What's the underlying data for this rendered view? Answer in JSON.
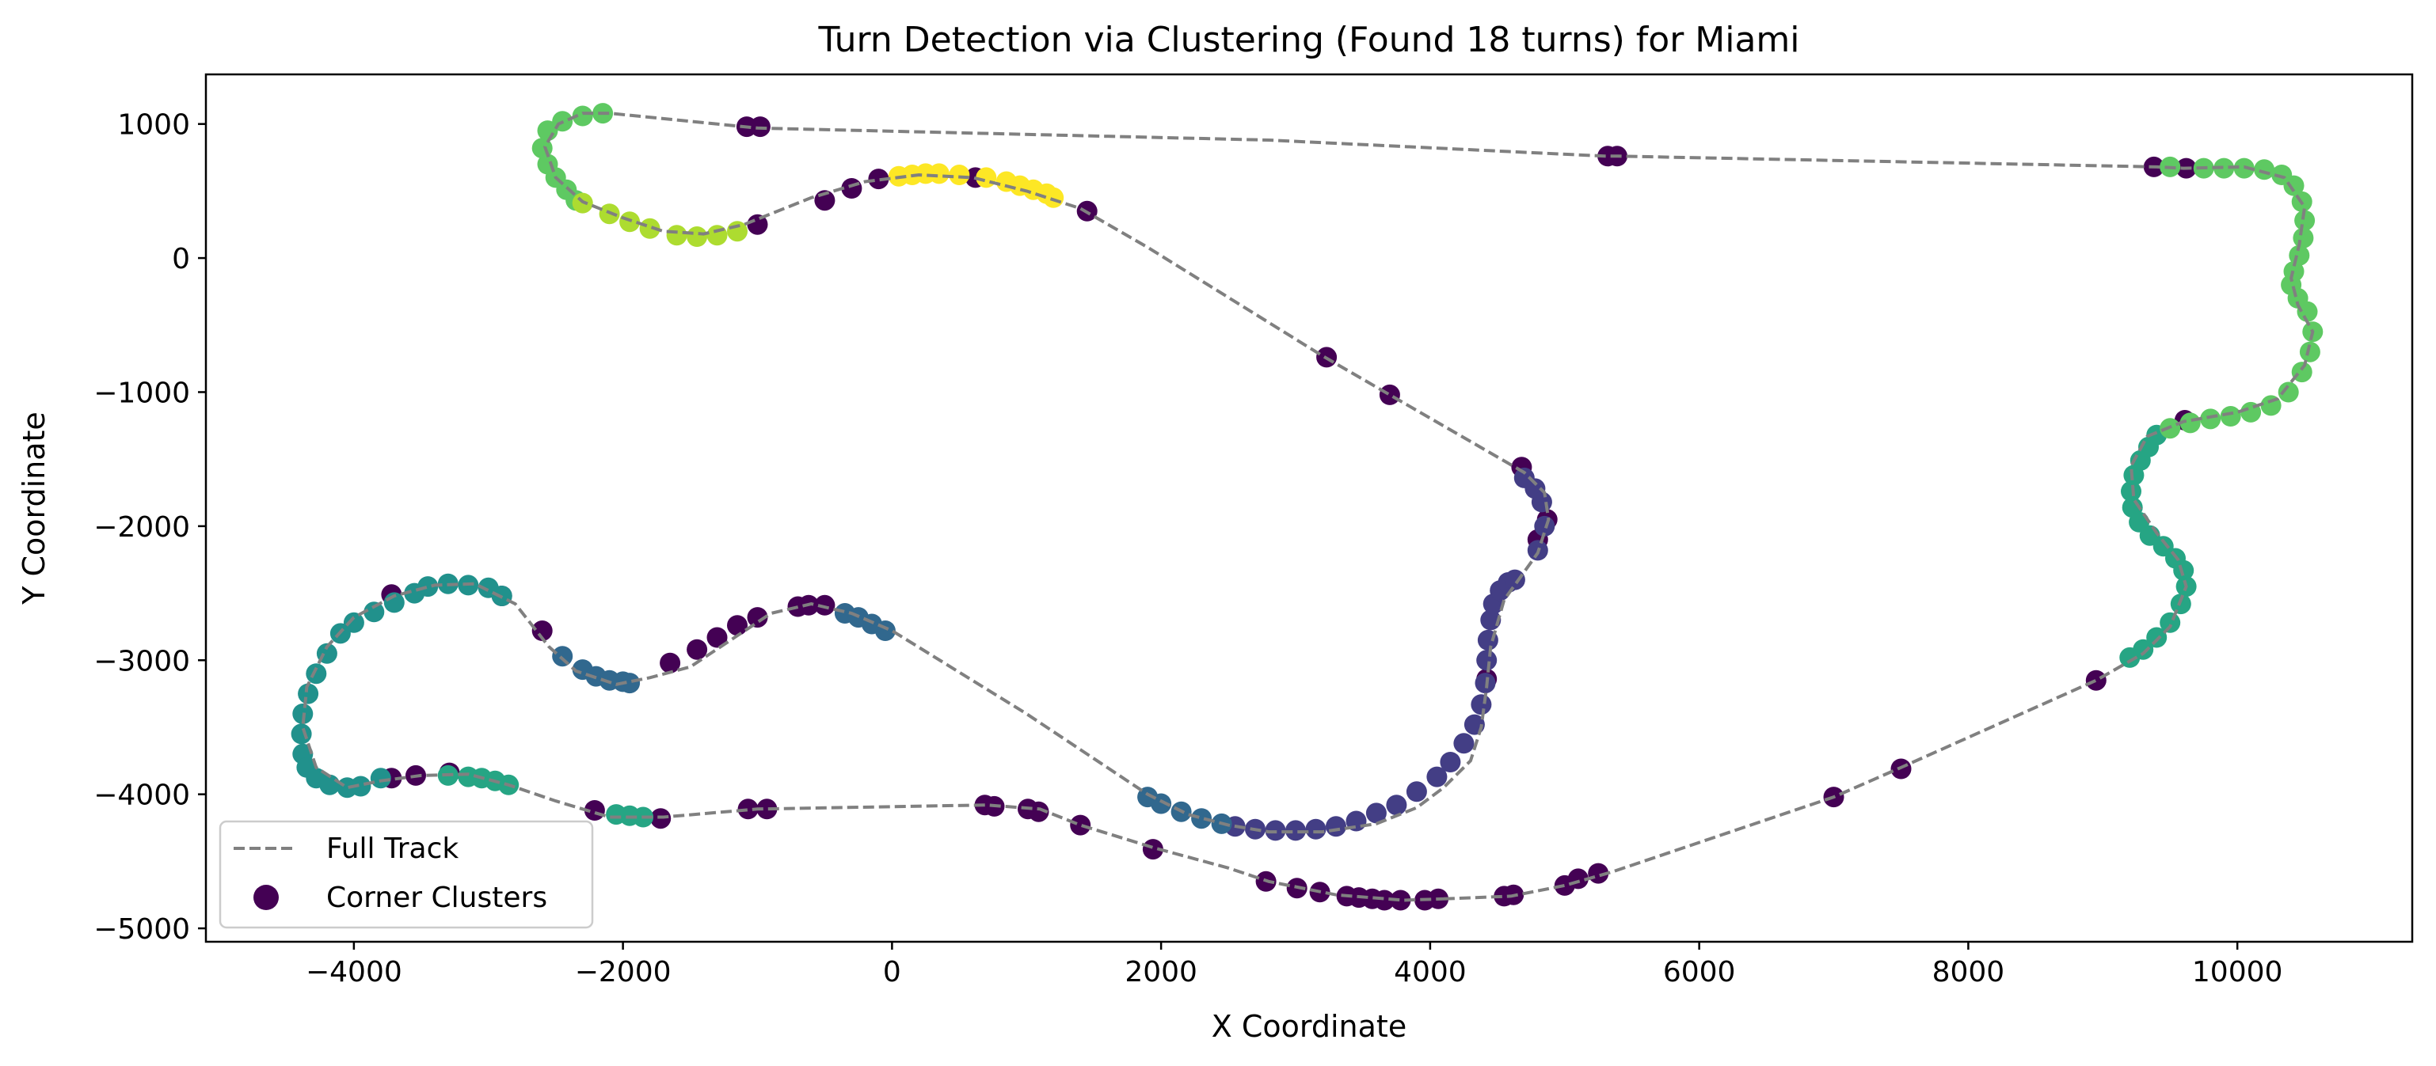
{
  "chart_data": {
    "type": "scatter",
    "title": "Turn Detection via Clustering (Found 18 turns) for Miami",
    "xlabel": "X Coordinate",
    "ylabel": "Y Coordinate",
    "xlim": [
      -5100,
      11300
    ],
    "ylim": [
      -5100,
      1370
    ],
    "xticks": [
      -4000,
      -2000,
      0,
      2000,
      4000,
      6000,
      8000,
      10000
    ],
    "yticks": [
      1000,
      0,
      -1000,
      -2000,
      -3000,
      -4000,
      -5000
    ],
    "xtick_labels": [
      "−4000",
      "−2000",
      "0",
      "2000",
      "4000",
      "6000",
      "8000",
      "10000"
    ],
    "ytick_labels": [
      "1000",
      "0",
      "−1000",
      "−2000",
      "−3000",
      "−4000",
      "−5000"
    ],
    "grid": false,
    "legend": {
      "position": "lower-left",
      "entries": [
        {
          "label": "Full Track",
          "type": "line",
          "color": "#808080"
        },
        {
          "label": "Corner Clusters",
          "type": "marker",
          "color": "#440154"
        }
      ]
    },
    "colors": {
      "noise": "#440154",
      "c_dark": "#433e85",
      "c_blue": "#31688e",
      "c_teal": "#21918c",
      "c_teal2": "#26a584",
      "c_green": "#5ec962",
      "c_lime": "#addc30",
      "c_yellow": "#fde725",
      "track": "#808080"
    },
    "track": [
      [
        4100,
        -4780
      ],
      [
        4600,
        -4760
      ],
      [
        5000,
        -4680
      ],
      [
        5350,
        -4580
      ],
      [
        7000,
        -4020
      ],
      [
        7500,
        -3800
      ],
      [
        8950,
        -3150
      ],
      [
        9300,
        -2950
      ],
      [
        9500,
        -2750
      ],
      [
        9620,
        -2450
      ],
      [
        9560,
        -2250
      ],
      [
        9400,
        -2050
      ],
      [
        9230,
        -1800
      ],
      [
        9210,
        -1550
      ],
      [
        9330,
        -1330
      ],
      [
        9600,
        -1220
      ],
      [
        10000,
        -1150
      ],
      [
        10300,
        -1050
      ],
      [
        10500,
        -800
      ],
      [
        10560,
        -550
      ],
      [
        10450,
        -350
      ],
      [
        10400,
        -150
      ],
      [
        10460,
        100
      ],
      [
        10500,
        380
      ],
      [
        10350,
        600
      ],
      [
        10050,
        680
      ],
      [
        9600,
        670
      ],
      [
        9400,
        680
      ],
      [
        5400,
        760
      ],
      [
        5300,
        760
      ],
      [
        2800,
        880
      ],
      [
        -1000,
        970
      ],
      [
        -2100,
        1080
      ],
      [
        -2300,
        1080
      ],
      [
        -2480,
        1000
      ],
      [
        -2580,
        830
      ],
      [
        -2500,
        600
      ],
      [
        -2300,
        420
      ],
      [
        -2000,
        300
      ],
      [
        -1700,
        200
      ],
      [
        -1400,
        180
      ],
      [
        -1100,
        250
      ],
      [
        -600,
        450
      ],
      [
        -200,
        570
      ],
      [
        200,
        620
      ],
      [
        600,
        600
      ],
      [
        1000,
        500
      ],
      [
        1400,
        370
      ],
      [
        1900,
        80
      ],
      [
        3200,
        -730
      ],
      [
        3700,
        -1020
      ],
      [
        4700,
        -1600
      ],
      [
        4850,
        -1750
      ],
      [
        4880,
        -1950
      ],
      [
        4800,
        -2200
      ],
      [
        4550,
        -2550
      ],
      [
        4450,
        -2900
      ],
      [
        4420,
        -3200
      ],
      [
        4380,
        -3500
      ],
      [
        4300,
        -3750
      ],
      [
        4100,
        -3950
      ],
      [
        3900,
        -4100
      ],
      [
        3600,
        -4220
      ],
      [
        3200,
        -4280
      ],
      [
        2800,
        -4280
      ],
      [
        2500,
        -4230
      ],
      [
        2200,
        -4150
      ],
      [
        1900,
        -4000
      ],
      [
        1000,
        -3400
      ],
      [
        0,
        -2780
      ],
      [
        -300,
        -2650
      ],
      [
        -600,
        -2580
      ],
      [
        -900,
        -2650
      ],
      [
        -1200,
        -2850
      ],
      [
        -1500,
        -3050
      ],
      [
        -1800,
        -3130
      ],
      [
        -2050,
        -3180
      ],
      [
        -2350,
        -3080
      ],
      [
        -2550,
        -2900
      ],
      [
        -2800,
        -2580
      ],
      [
        -3100,
        -2430
      ],
      [
        -3400,
        -2440
      ],
      [
        -3700,
        -2520
      ],
      [
        -4000,
        -2680
      ],
      [
        -4200,
        -2900
      ],
      [
        -4350,
        -3200
      ],
      [
        -4380,
        -3500
      ],
      [
        -4280,
        -3800
      ],
      [
        -4050,
        -3950
      ],
      [
        -3800,
        -3900
      ],
      [
        -3500,
        -3860
      ],
      [
        -3150,
        -3850
      ],
      [
        -2850,
        -3930
      ],
      [
        -2500,
        -4050
      ],
      [
        -2100,
        -4170
      ],
      [
        -1700,
        -4170
      ],
      [
        -1000,
        -4110
      ],
      [
        700,
        -4080
      ],
      [
        1100,
        -4110
      ],
      [
        1400,
        -4230
      ],
      [
        1950,
        -4400
      ],
      [
        2500,
        -4550
      ],
      [
        2800,
        -4650
      ],
      [
        3300,
        -4750
      ],
      [
        3800,
        -4790
      ],
      [
        4100,
        -4780
      ]
    ],
    "points": [
      {
        "color": "noise",
        "x": [
          4550,
          4620,
          5000,
          5100,
          5250,
          7000,
          7500,
          8950,
          9610,
          9380,
          9620,
          5320,
          5390,
          -1080,
          -980,
          -1000,
          -500,
          -300,
          -100,
          620,
          1450,
          3230,
          3700,
          4420,
          4680,
          4800,
          4870,
          -3720,
          -2900,
          -2600,
          -1650,
          -1450,
          -1300,
          -1150,
          -1000,
          -700,
          -620,
          -500,
          -3720,
          -3540,
          -3290,
          -2210,
          -1720,
          -1070,
          -930,
          690,
          760,
          1010,
          1090,
          1400,
          1940,
          2780,
          3010,
          3180,
          3380,
          3470,
          3570,
          3660,
          3780,
          3960,
          4060
        ],
        "y": [
          -4760,
          -4750,
          -4680,
          -4630,
          -4590,
          -4020,
          -3810,
          -3150,
          -1210,
          680,
          670,
          760,
          760,
          980,
          980,
          250,
          430,
          520,
          590,
          600,
          350,
          -740,
          -1020,
          -3140,
          -1560,
          -2100,
          -1950,
          -2510,
          -2520,
          -2780,
          -3020,
          -2920,
          -2830,
          -2740,
          -2680,
          -2600,
          -2590,
          -2590,
          -3880,
          -3860,
          -3840,
          -4120,
          -4180,
          -4110,
          -4110,
          -4080,
          -4090,
          -4110,
          -4130,
          -4230,
          -4410,
          -4650,
          -4700,
          -4730,
          -4760,
          -4770,
          -4780,
          -4790,
          -4790,
          -4790,
          -4780
        ]
      },
      {
        "color": "c_dark",
        "x": [
          2550,
          2700,
          2850,
          3000,
          3150,
          3300,
          3450,
          3600,
          3750,
          3900,
          4050,
          4150,
          4250,
          4330,
          4380,
          4410,
          4420,
          4430,
          4450,
          4470,
          4520,
          4580,
          4630,
          4700,
          4780,
          4830,
          4850,
          4800
        ],
        "y": [
          -4240,
          -4260,
          -4270,
          -4270,
          -4260,
          -4240,
          -4200,
          -4140,
          -4080,
          -3980,
          -3870,
          -3760,
          -3620,
          -3480,
          -3330,
          -3170,
          -3000,
          -2850,
          -2700,
          -2580,
          -2480,
          -2420,
          -2400,
          -1640,
          -1720,
          -1820,
          -2000,
          -2180
        ]
      },
      {
        "color": "c_blue",
        "x": [
          1900,
          2000,
          2150,
          2300,
          2450,
          -350,
          -250,
          -150,
          -50,
          -2450,
          -2300,
          -2200,
          -2100,
          -2000,
          -1950
        ],
        "y": [
          -4020,
          -4070,
          -4130,
          -4180,
          -4220,
          -2650,
          -2680,
          -2730,
          -2780,
          -2970,
          -3070,
          -3120,
          -3150,
          -3160,
          -3170
        ]
      },
      {
        "color": "c_teal",
        "x": [
          -2900,
          -3000,
          -3150,
          -3300,
          -3450,
          -3550,
          -3700,
          -3850,
          -4000,
          -4100,
          -4200,
          -4280,
          -4340,
          -4380,
          -4390,
          -4380,
          -4350,
          -4280,
          -4180,
          -4050,
          -3950,
          -3800
        ],
        "y": [
          -2520,
          -2460,
          -2440,
          -2430,
          -2450,
          -2500,
          -2570,
          -2640,
          -2720,
          -2800,
          -2950,
          -3100,
          -3250,
          -3400,
          -3550,
          -3700,
          -3800,
          -3880,
          -3930,
          -3950,
          -3940,
          -3880
        ]
      },
      {
        "color": "c_teal2",
        "x": [
          -3300,
          -3150,
          -3050,
          -2950,
          -2850,
          -2050,
          -1950,
          -1850,
          9200,
          9300,
          9400,
          9500,
          9580,
          9620,
          9600,
          9540,
          9450,
          9350,
          9270,
          9220,
          9210,
          9230,
          9280,
          9340,
          9400
        ],
        "y": [
          -3860,
          -3870,
          -3880,
          -3900,
          -3930,
          -4150,
          -4160,
          -4170,
          -2980,
          -2920,
          -2830,
          -2720,
          -2580,
          -2450,
          -2330,
          -2240,
          -2150,
          -2070,
          -1970,
          -1860,
          -1740,
          -1620,
          -1510,
          -1410,
          -1320
        ]
      },
      {
        "color": "c_green",
        "x": [
          9500,
          9650,
          9800,
          9950,
          10100,
          10250,
          10380,
          10480,
          10540,
          10560,
          10520,
          10450,
          10400,
          10420,
          10460,
          10490,
          10500,
          10480,
          10420,
          10330,
          10200,
          10050,
          9900,
          9750,
          9500,
          -2150,
          -2300,
          -2450,
          -2560,
          -2600,
          -2560,
          -2500,
          -2420,
          -2350
        ],
        "y": [
          -1270,
          -1230,
          -1200,
          -1180,
          -1150,
          -1100,
          -1000,
          -850,
          -700,
          -550,
          -400,
          -300,
          -200,
          -100,
          20,
          150,
          280,
          420,
          540,
          620,
          660,
          670,
          670,
          670,
          680,
          1080,
          1060,
          1020,
          950,
          820,
          700,
          600,
          510,
          430
        ]
      },
      {
        "color": "c_lime",
        "x": [
          -2300,
          -2100,
          -1950,
          -1800,
          -1600,
          -1450,
          -1300,
          -1150
        ],
        "y": [
          410,
          330,
          270,
          220,
          170,
          160,
          170,
          200
        ]
      },
      {
        "color": "c_yellow",
        "x": [
          50,
          150,
          250,
          350,
          500,
          700,
          850,
          950,
          1050,
          1150,
          1200
        ],
        "y": [
          610,
          620,
          630,
          630,
          620,
          600,
          570,
          540,
          510,
          480,
          450
        ]
      }
    ]
  }
}
